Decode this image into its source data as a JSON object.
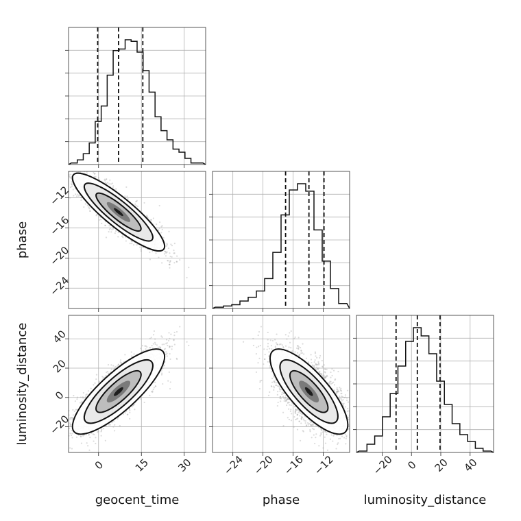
{
  "chart_data": {
    "type": "corner",
    "parameters": [
      "geocent_time",
      "phase",
      "luminosity_distance"
    ],
    "ranges": {
      "geocent_time": [
        -10.5,
        37.5
      ],
      "phase": [
        -26.7,
        -8.5
      ],
      "luminosity_distance": [
        -37.5,
        56.0
      ]
    },
    "ticks": {
      "geocent_time": {
        "values": [
          0,
          15,
          30
        ],
        "labels": [
          "0",
          "15",
          "30"
        ]
      },
      "phase": {
        "values": [
          -24,
          -20,
          -16,
          -12
        ],
        "labels": [
          "−24",
          "−20",
          "−16",
          "−12"
        ]
      },
      "luminosity_distance": {
        "values": [
          -20,
          0,
          20,
          40
        ],
        "labels": [
          "−20",
          "0",
          "20",
          "40"
        ]
      }
    },
    "quantiles": {
      "geocent_time": [
        -0.3,
        7.0,
        15.5
      ],
      "phase": [
        -17.0,
        -13.9,
        -11.9
      ],
      "luminosity_distance": [
        -10.5,
        4.0,
        19.5
      ]
    },
    "histograms": {
      "geocent_time": [
        1,
        3,
        7,
        14,
        28,
        38,
        58,
        74,
        75,
        81,
        80,
        73,
        61,
        47,
        31,
        22,
        16,
        10,
        8,
        4,
        1,
        1
      ],
      "phase": [
        1,
        2,
        3,
        6,
        9,
        14,
        24,
        45,
        75,
        95,
        100,
        94,
        63,
        38,
        16,
        4
      ],
      "luminosity_distance": [
        1,
        6,
        12,
        26,
        43,
        63,
        81,
        91,
        85,
        72,
        52,
        35,
        21,
        13,
        8,
        3,
        1
      ]
    },
    "grid": true,
    "xlabel": [
      "geocent_time",
      "phase",
      "luminosity_distance"
    ],
    "ylabel": [
      "",
      "phase",
      "luminosity_distance"
    ]
  }
}
